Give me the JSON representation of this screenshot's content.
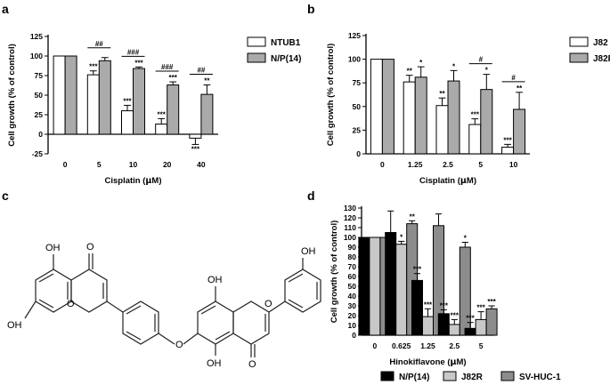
{
  "chart_data": [
    {
      "panel": "a",
      "type": "bar",
      "categories": [
        "0",
        "5",
        "10",
        "20",
        "40"
      ],
      "xlabel_pre": "Cisplatin (",
      "xlabel_mu": "μ",
      "xlabel_post": "M)",
      "ylabel": "Cell growth (% of control)",
      "ylim": [
        -25,
        125
      ],
      "yticks": [
        -25,
        0,
        25,
        50,
        75,
        100,
        125
      ],
      "series": [
        {
          "name": "NTUB1",
          "color": "#ffffff",
          "values": [
            100,
            76,
            30,
            13,
            -5
          ],
          "errors": [
            0,
            5,
            7,
            7,
            8
          ],
          "sig": [
            "",
            "***",
            "***",
            "***",
            "***"
          ]
        },
        {
          "name": "N/P(14)",
          "color": "#aaaaaa",
          "values": [
            100,
            94,
            84,
            63,
            51
          ],
          "errors": [
            0,
            4,
            2,
            4,
            12
          ],
          "sig": [
            "",
            "",
            "***",
            "***",
            "**"
          ]
        }
      ],
      "between": [
        "",
        "##",
        "###",
        "###",
        "##"
      ]
    },
    {
      "panel": "b",
      "type": "bar",
      "categories": [
        "0",
        "1.25",
        "2.5",
        "5",
        "10"
      ],
      "xlabel_pre": "Cisplatin (",
      "xlabel_mu": "μ",
      "xlabel_post": "M)",
      "ylabel": "Cell growth (% of control)",
      "ylim": [
        0,
        125
      ],
      "yticks": [
        0,
        25,
        50,
        75,
        100,
        125
      ],
      "series": [
        {
          "name": "J82",
          "color": "#ffffff",
          "values": [
            100,
            76,
            51,
            31,
            7
          ],
          "errors": [
            0,
            7,
            8,
            6,
            3
          ],
          "sig": [
            "",
            "**",
            "**",
            "***",
            "***"
          ]
        },
        {
          "name": "J82R",
          "color": "#aaaaaa",
          "values": [
            100,
            81,
            77,
            68,
            47
          ],
          "errors": [
            0,
            11,
            11,
            16,
            18
          ],
          "sig": [
            "",
            "*",
            "*",
            "*",
            "**"
          ]
        }
      ],
      "between": [
        "",
        "",
        "",
        "#",
        "#"
      ]
    },
    {
      "panel": "d",
      "type": "bar",
      "categories": [
        "0",
        "0.625",
        "1.25",
        "2.5",
        "5"
      ],
      "xlabel_pre": "Hinokiflavone (",
      "xlabel_mu": "μ",
      "xlabel_post": "M)",
      "ylabel": "Cell growth (% of control)",
      "ylim": [
        0,
        130
      ],
      "yticks": [
        0,
        10,
        20,
        30,
        40,
        50,
        60,
        70,
        80,
        90,
        100,
        110,
        120,
        130
      ],
      "series": [
        {
          "name": "N/P(14)",
          "color": "#000000",
          "values": [
            100,
            105,
            56,
            22,
            7
          ],
          "errors": [
            0,
            22,
            7,
            4,
            6
          ],
          "sig": [
            "",
            "",
            "***",
            "***",
            "***"
          ]
        },
        {
          "name": "J82R",
          "color": "#c8c8c8",
          "values": [
            100,
            93,
            19,
            11,
            16
          ],
          "errors": [
            0,
            3,
            8,
            5,
            8
          ],
          "sig": [
            "",
            "*",
            "***",
            "***",
            "***"
          ]
        },
        {
          "name": "SV-HUC-1",
          "color": "#8c8c8c",
          "values": [
            100,
            114,
            112,
            90,
            27
          ],
          "errors": [
            0,
            3,
            12,
            5,
            3
          ],
          "sig": [
            "",
            "**",
            "",
            "*",
            "***"
          ]
        }
      ],
      "between": [
        "",
        "",
        "",
        "",
        ""
      ]
    }
  ],
  "panel_labels": {
    "a": "a",
    "b": "b",
    "c": "c",
    "d": "d"
  },
  "structure": {
    "atoms": {
      "oh1": "OH",
      "oh2": "OH",
      "oh3": "OH",
      "oh4": "OH",
      "oh5": "OH",
      "o_bridge": "O",
      "o1": "O",
      "o2": "O",
      "o3": "O",
      "o4": "O"
    }
  }
}
